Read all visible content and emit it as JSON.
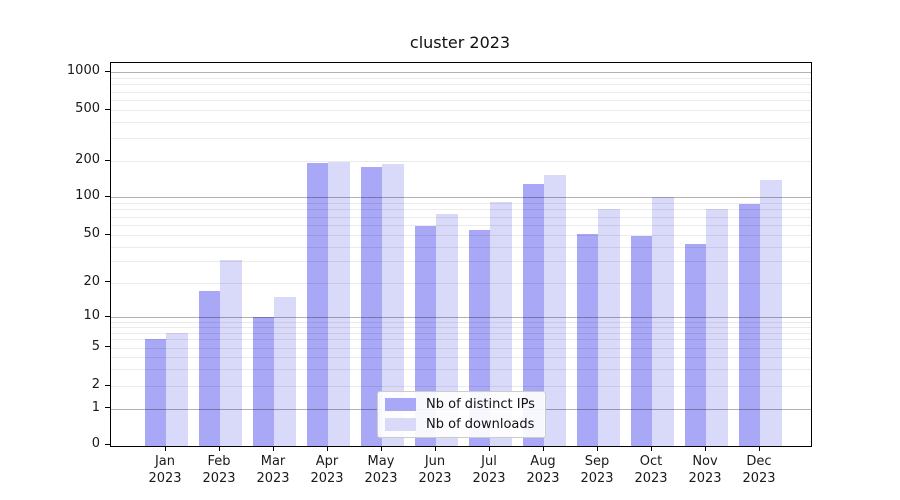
{
  "title": "cluster 2023",
  "chart_data": {
    "type": "bar",
    "title": "cluster 2023",
    "categories": [
      "Jan",
      "Feb",
      "Mar",
      "Apr",
      "May",
      "Jun",
      "Jul",
      "Aug",
      "Sep",
      "Oct",
      "Nov",
      "Dec"
    ],
    "category_year": "2023",
    "series": [
      {
        "name": "Nb of distinct IPs",
        "color": "#a8a8f6",
        "values": [
          6,
          17,
          10,
          192,
          179,
          59,
          55,
          129,
          51,
          49,
          42,
          88
        ]
      },
      {
        "name": "Nb of downloads",
        "color": "#d9d9f9",
        "values": [
          7,
          31,
          15,
          197,
          190,
          73,
          92,
          152,
          80,
          100,
          80,
          138
        ]
      }
    ],
    "yscale": "symlog",
    "y_ticks": [
      0,
      1,
      2,
      5,
      10,
      20,
      50,
      100,
      200,
      500,
      1000
    ],
    "y_tick_labels": [
      "0",
      "1",
      "2",
      "5",
      "10",
      "20",
      "50",
      "100",
      "200",
      "500",
      "1000"
    ],
    "grid": true,
    "legend_position": "lower center inside",
    "colors": {
      "major_grid": "#b0b0b0",
      "minor_grid": "#ebebeb",
      "axis": "#000000",
      "text": "#111111",
      "legend_border": "#cccccc",
      "legend_bg": "#ffffff"
    }
  }
}
